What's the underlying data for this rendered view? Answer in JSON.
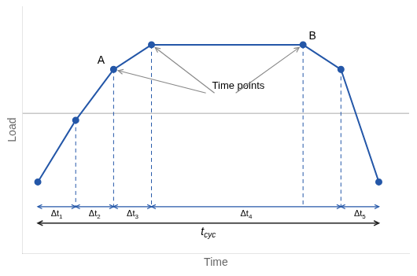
{
  "chart_data": {
    "type": "line",
    "x": [
      0,
      1,
      2,
      3,
      7,
      8,
      9
    ],
    "values": [
      0.0,
      0.45,
      0.82,
      1.0,
      1.0,
      0.82,
      0.0
    ],
    "color": "#2457a8",
    "marker": "circle",
    "xlabel": "Time",
    "ylabel": "Load",
    "xlim": [
      -0.4,
      9.8
    ],
    "ylim": [
      -0.52,
      1.28
    ],
    "tick_labels": false,
    "grid": false,
    "hline": 0.5,
    "dashed_x": [
      1,
      2,
      3,
      7,
      8
    ],
    "annotations": [
      {
        "text": "A",
        "x": 2,
        "y": 0.82
      },
      {
        "text": "B",
        "x": 7,
        "y": 1.0
      },
      {
        "text": "Time points",
        "x": 4.6,
        "y": 0.7,
        "arrow_to_x": [
          2,
          3,
          7
        ]
      }
    ],
    "intervals": {
      "y": -0.18,
      "items": [
        {
          "label": "Δt",
          "subscript": "1",
          "x1": 0,
          "x2": 1
        },
        {
          "label": "Δt",
          "subscript": "2",
          "x1": 1,
          "x2": 2
        },
        {
          "label": "Δt",
          "subscript": "3",
          "x1": 2,
          "x2": 3
        },
        {
          "label": "Δt",
          "subscript": "4",
          "x1": 3,
          "x2": 8
        },
        {
          "label": "Δt",
          "subscript": "5",
          "x1": 8,
          "x2": 9
        }
      ]
    },
    "cycle": {
      "label": "t",
      "subscript": "cyc",
      "x1": 0,
      "x2": 9,
      "y": -0.3
    }
  }
}
